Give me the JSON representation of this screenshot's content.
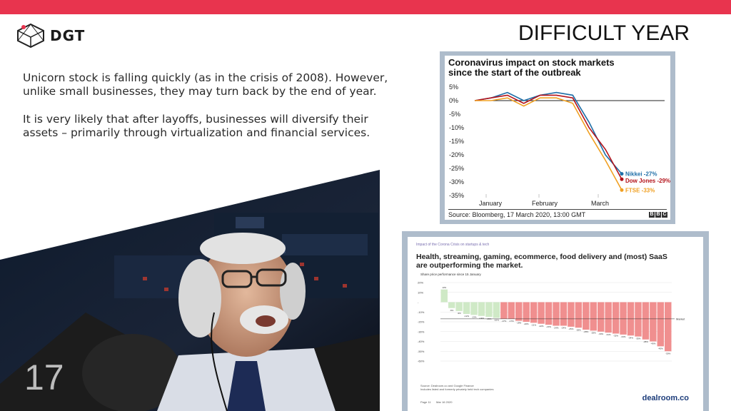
{
  "header": {
    "title": "DIFFICULT YEAR",
    "brand": "DGT",
    "accent": "#e8344e"
  },
  "body": {
    "paragraph1": "Unicorn stock is falling quickly (as in the crisis of 2008). However, unlike small businesses, they may turn back by the end of year.",
    "paragraph2": "It is very likely that after layoffs, businesses will diversify their assets – primarily through virtualization and financial services."
  },
  "page_number": "17",
  "chart1": {
    "title_line1": "Coronavirus impact on stock markets",
    "title_line2": "since the start of the outbreak",
    "source": "Source: Bloomberg, 17 March 2020, 13:00 GMT",
    "labels": {
      "nikkei": "Nikkei -27%",
      "dow": "Dow Jones -29%",
      "ftse": "FTSE -33%"
    },
    "xticks": [
      "January",
      "February",
      "March"
    ],
    "yticks": [
      "5%",
      "0%",
      "-5%",
      "-10%",
      "-15%",
      "-20%",
      "-25%",
      "-30%",
      "-35%"
    ]
  },
  "chart2": {
    "kicker": "Impact of the Corona Crisis on startups & tech",
    "title": "Health, streaming, gaming, ecommerce, food delivery and (most) SaaS are outperforming the market.",
    "subtitle": "Share price performance since 15 January",
    "yticks": [
      "20%",
      "10%",
      "-",
      "-10%",
      "-20%",
      "-30%",
      "-40%",
      "-50%",
      "-60%"
    ],
    "market_label": "Market",
    "foot1": "Source: Dealroom.co and Google Finance",
    "foot2": "Includes listed and formerly privately held tech companies",
    "page": "Page 11",
    "date": "Mar 16 2020",
    "brand": "dealroom.co"
  },
  "chart_data": [
    {
      "type": "line",
      "title": "Coronavirus impact on stock markets since the start of the outbreak",
      "xlabel": "",
      "ylabel": "",
      "x": [
        "Jan",
        "Jan",
        "Jan",
        "Feb",
        "Feb",
        "Feb",
        "Feb",
        "Mar",
        "Mar",
        "Mar"
      ],
      "ylim": [
        -35,
        5
      ],
      "series": [
        {
          "name": "Nikkei -27%",
          "color": "#1f6fa8",
          "values": [
            0,
            1,
            3,
            0,
            2,
            3,
            2,
            -8,
            -20,
            -27
          ]
        },
        {
          "name": "Dow Jones -29%",
          "color": "#b3121a",
          "values": [
            0,
            1,
            2,
            -1,
            2,
            2,
            1,
            -10,
            -18,
            -29
          ]
        },
        {
          "name": "FTSE -33%",
          "color": "#f0a022",
          "values": [
            0,
            0,
            1,
            -2,
            1,
            1,
            -1,
            -12,
            -22,
            -33
          ]
        }
      ]
    },
    {
      "type": "bar",
      "title": "Health, streaming, gaming, ecommerce, food delivery and (most) SaaS are outperforming the market.",
      "ylabel": "Share price performance since 15 January",
      "ylim": [
        -60,
        20
      ],
      "values": [
        13,
        -6,
        -9,
        -12,
        -13,
        -14,
        -15,
        -16,
        -17,
        -17,
        -19,
        -20,
        -21,
        -22,
        -23,
        -24,
        -24,
        -25,
        -26,
        -28,
        -29,
        -30,
        -31,
        -32,
        -33,
        -34,
        -35,
        -38,
        -40,
        -45,
        -50
      ],
      "market_line": -17
    }
  ]
}
